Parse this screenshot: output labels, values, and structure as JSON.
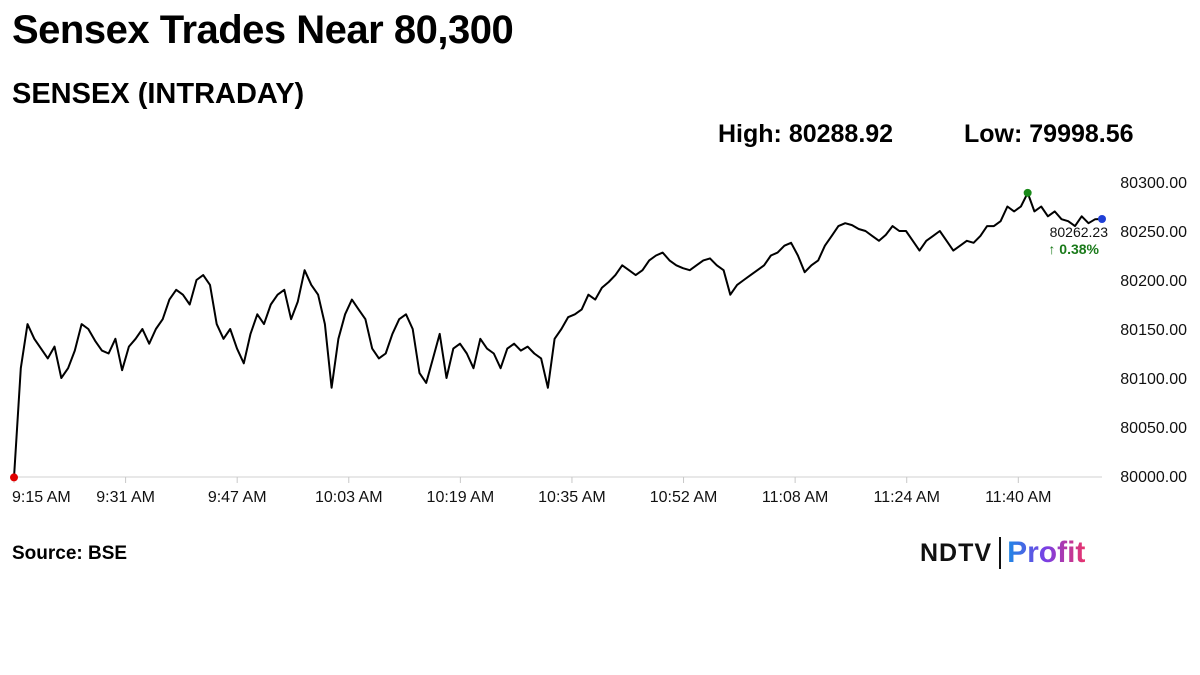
{
  "headline": "Sensex Trades Near 80,300",
  "subtitle": "SENSEX (INTRADAY)",
  "stats": {
    "high": "High: 80288.92",
    "low": "Low: 79998.56"
  },
  "source": "Source: BSE",
  "logo": {
    "left": "NDTV",
    "right": "Profit",
    "accent_color": "#e8336d"
  },
  "colors": {
    "line": "#000000",
    "low_marker": "#e00000",
    "high_marker": "#1a8a1a",
    "last_marker": "#1f3fd6",
    "change_text": "#1a7a1a"
  },
  "chart_data": {
    "type": "line",
    "x_tick_labels": [
      "9:15 AM",
      "9:31 AM",
      "9:47 AM",
      "10:03 AM",
      "10:19 AM",
      "10:35 AM",
      "10:52 AM",
      "11:08 AM",
      "11:24 AM",
      "11:40 AM"
    ],
    "y_tick_labels": [
      "80000.00",
      "80050.00",
      "80100.00",
      "80150.00",
      "80200.00",
      "80250.00",
      "80300.00"
    ],
    "ylim": [
      80000,
      80300
    ],
    "grid": false,
    "last_value": "80262.23",
    "change": "↑ 0.38%",
    "x_minutes": [
      0,
      1,
      2,
      3,
      5,
      6,
      7,
      8,
      9,
      10,
      11,
      12,
      13,
      14,
      15,
      16,
      17,
      18,
      19,
      20,
      21,
      22,
      23,
      24,
      25,
      26,
      27,
      28,
      29,
      30,
      31,
      32,
      33,
      34,
      35,
      36,
      37,
      38,
      39,
      40,
      41,
      42,
      43,
      44,
      45,
      46,
      47,
      48,
      49,
      50,
      51,
      52,
      53,
      54,
      55,
      56,
      57,
      58,
      59,
      60,
      61,
      62,
      63,
      64,
      65,
      66,
      67,
      68,
      69,
      70,
      71,
      72,
      73,
      74,
      75,
      76,
      77,
      78,
      79,
      80,
      81,
      82,
      83,
      84,
      85,
      86,
      87,
      88,
      89,
      90,
      91,
      92,
      93,
      94,
      95,
      96,
      97,
      98,
      99,
      100,
      101,
      102,
      103,
      104,
      105,
      106,
      107,
      108,
      109,
      110,
      111,
      112,
      113,
      114,
      115,
      116,
      117,
      118,
      119,
      120,
      121,
      122,
      123,
      124,
      125,
      126,
      127,
      128,
      129,
      130,
      131,
      132,
      133,
      134,
      135,
      136,
      137,
      138,
      139,
      140,
      141,
      142,
      143,
      144,
      145,
      146,
      147,
      148,
      149,
      150,
      151,
      152,
      153,
      154,
      155,
      156,
      157,
      158,
      159,
      160,
      161
    ],
    "values": [
      79998.56,
      80110,
      80155,
      80140,
      80120,
      80132,
      80100,
      80110,
      80128,
      80155,
      80150,
      80138,
      80128,
      80125,
      80140,
      80108,
      80132,
      80140,
      80150,
      80135,
      80150,
      80160,
      80180,
      80190,
      80185,
      80175,
      80200,
      80205,
      80195,
      80155,
      80140,
      80150,
      80130,
      80115,
      80145,
      80165,
      80155,
      80175,
      80185,
      80190,
      80160,
      80178,
      80210,
      80195,
      80185,
      80155,
      80090,
      80140,
      80165,
      80180,
      80170,
      80160,
      80130,
      80120,
      80125,
      80145,
      80160,
      80165,
      80150,
      80105,
      80095,
      80120,
      80145,
      80100,
      80130,
      80135,
      80125,
      80110,
      80140,
      80130,
      80125,
      80110,
      80130,
      80135,
      80128,
      80132,
      80125,
      80120,
      80090,
      80140,
      80150,
      80162,
      80165,
      80170,
      80185,
      80180,
      80192,
      80198,
      80205,
      80215,
      80210,
      80205,
      80210,
      80220,
      80225,
      80228,
      80220,
      80215,
      80212,
      80210,
      80215,
      80220,
      80222,
      80215,
      80210,
      80185,
      80195,
      80200,
      80205,
      80210,
      80215,
      80225,
      80228,
      80235,
      80238,
      80225,
      80208,
      80215,
      80220,
      80235,
      80245,
      80255,
      80258,
      80256,
      80252,
      80250,
      80245,
      80240,
      80246,
      80255,
      80250,
      80250,
      80240,
      80230,
      80240,
      80245,
      80250,
      80240,
      80230,
      80235,
      80240,
      80238,
      80245,
      80255,
      80255,
      80260,
      80275,
      80270,
      80275,
      80288.92,
      80270,
      80275,
      80265,
      80270,
      80262,
      80260,
      80255,
      80265,
      80258,
      80262,
      80262.23
    ]
  }
}
